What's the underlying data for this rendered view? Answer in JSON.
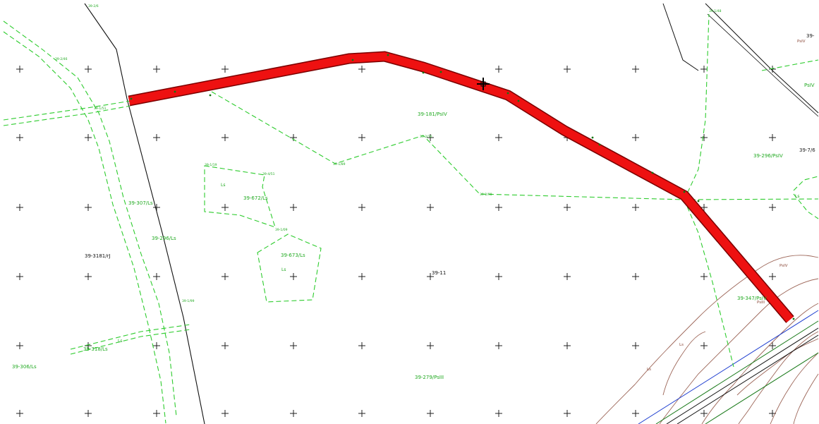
{
  "colors": {
    "background": "#ffffff",
    "route": "#ee1111",
    "route_outline": "#7a0000",
    "parcel_line": "#2ecc2e",
    "parcel_text": "#22aa22",
    "road_line": "#111111",
    "contour": "#8b4a3a",
    "power_line": "#1f3fd0",
    "magenta_text": "#d020d0",
    "grid_cross": "#222222"
  },
  "cursor_icon": "crosshair-cursor-icon",
  "parcel_labels": {
    "p1": "39-181/PsIV",
    "p2": "39-296/PsIV",
    "p3": "39-7/6",
    "p4": "39-307/Ls",
    "p5": "39-296/Ls",
    "p6": "39-3181/rJ",
    "p7": "39-672/Ls",
    "p8": "39-673/Ls",
    "p9": "39-11",
    "p10": "39-318/Ls",
    "p11": "39-306/Ls",
    "p12": "39-279/PsIII",
    "p13": "39-347/PsIV",
    "p14": "39-",
    "p15": "PsIV",
    "p16": "PsIV",
    "p17": "Ls",
    "p18": "Ls",
    "p19": "Ls",
    "p20": "Ls",
    "p21": "PsIV",
    "p22": "PsIII",
    "p23": "Ls",
    "p24": "Ls"
  },
  "small_labels": {
    "s1": "39-2/6",
    "s2": "39-2/46",
    "s3": "39-1/51",
    "s4": "39-1/19",
    "s5": "39-4/51",
    "s6": "39-1/09",
    "s7": "39-1/89",
    "s8": "39-2/98",
    "s9": "39-2/16",
    "s10": "39-1/99",
    "s11": "39-1/48"
  }
}
